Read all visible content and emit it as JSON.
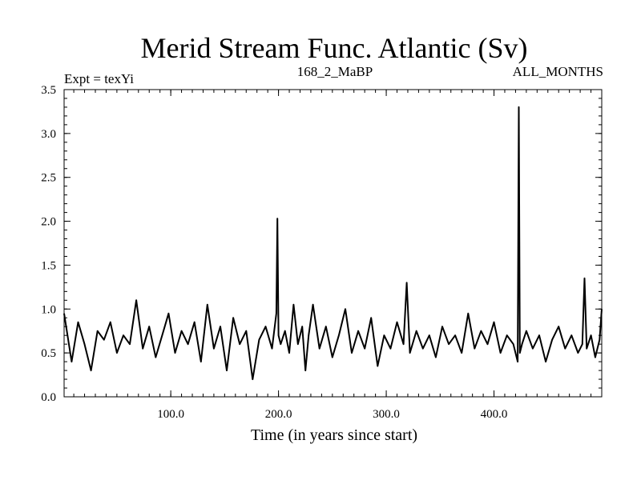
{
  "chart_data": {
    "type": "line",
    "title": "Merid Stream Func. Atlantic (Sv)",
    "subtitle_left": "Expt = texYi",
    "subtitle_center": "168_2_MaBP",
    "subtitle_right": "ALL_MONTHS",
    "xlabel": "Time (in years since start)",
    "ylabel": "",
    "xlim": [
      1,
      500
    ],
    "ylim": [
      0.0,
      3.5
    ],
    "x_ticks": [
      100.0,
      200.0,
      300.0,
      400.0
    ],
    "x_tick_labels": [
      "100.0",
      "200.0",
      "300.0",
      "400.0"
    ],
    "y_ticks": [
      0.0,
      0.5,
      1.0,
      1.5,
      2.0,
      2.5,
      3.0,
      3.5
    ],
    "y_tick_labels": [
      "0.0",
      "0.5",
      "1.0",
      "1.5",
      "2.0",
      "2.5",
      "3.0",
      "3.5"
    ],
    "grid": false,
    "legend": "none",
    "series": [
      {
        "color": "#000000",
        "x": [
          1,
          8,
          14,
          20,
          26,
          32,
          38,
          44,
          50,
          56,
          62,
          68,
          74,
          80,
          86,
          92,
          98,
          104,
          110,
          116,
          122,
          128,
          134,
          140,
          146,
          152,
          158,
          164,
          170,
          176,
          182,
          188,
          194,
          198,
          199,
          200,
          202,
          206,
          210,
          214,
          218,
          222,
          225,
          228,
          232,
          238,
          244,
          250,
          256,
          262,
          268,
          274,
          280,
          286,
          292,
          298,
          304,
          310,
          316,
          319,
          322,
          328,
          334,
          340,
          346,
          352,
          358,
          364,
          370,
          376,
          382,
          388,
          394,
          400,
          406,
          412,
          418,
          422,
          423,
          424,
          426,
          430,
          436,
          442,
          448,
          454,
          460,
          466,
          472,
          478,
          482,
          484,
          486,
          490,
          494,
          498,
          500
        ],
        "y": [
          0.95,
          0.4,
          0.85,
          0.6,
          0.3,
          0.75,
          0.65,
          0.85,
          0.5,
          0.7,
          0.6,
          1.1,
          0.55,
          0.8,
          0.45,
          0.7,
          0.95,
          0.5,
          0.75,
          0.6,
          0.85,
          0.4,
          1.05,
          0.55,
          0.8,
          0.3,
          0.9,
          0.6,
          0.75,
          0.2,
          0.65,
          0.8,
          0.55,
          0.95,
          2.03,
          0.7,
          0.6,
          0.75,
          0.5,
          1.05,
          0.6,
          0.8,
          0.3,
          0.7,
          1.05,
          0.55,
          0.8,
          0.45,
          0.7,
          1.0,
          0.5,
          0.75,
          0.55,
          0.9,
          0.35,
          0.7,
          0.55,
          0.85,
          0.6,
          1.3,
          0.5,
          0.75,
          0.55,
          0.7,
          0.45,
          0.8,
          0.6,
          0.7,
          0.5,
          0.95,
          0.55,
          0.75,
          0.6,
          0.85,
          0.5,
          0.7,
          0.6,
          0.4,
          3.3,
          0.5,
          0.6,
          0.75,
          0.55,
          0.7,
          0.4,
          0.65,
          0.8,
          0.55,
          0.7,
          0.5,
          0.6,
          1.35,
          0.55,
          0.7,
          0.45,
          0.65,
          1.0
        ]
      }
    ]
  }
}
